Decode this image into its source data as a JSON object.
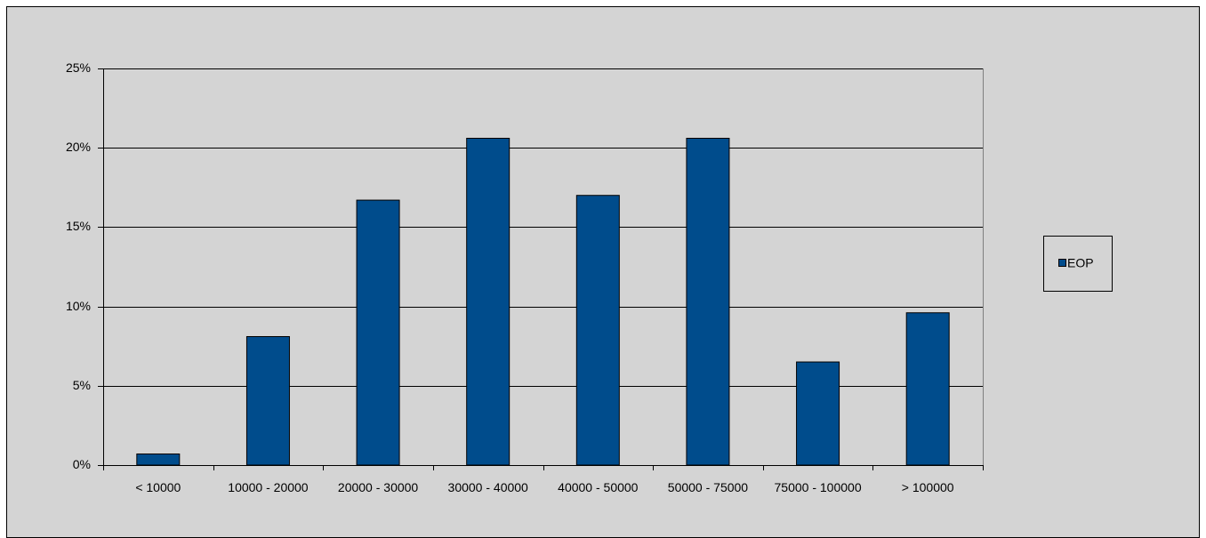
{
  "chart_data": {
    "type": "bar",
    "categories": [
      "< 10000",
      "10000 - 20000",
      "20000 - 30000",
      "30000 - 40000",
      "40000 - 50000",
      "50000 - 75000",
      "75000 - 100000",
      "> 100000"
    ],
    "series": [
      {
        "name": "EOP",
        "color": "#004c8c",
        "values": [
          0.7,
          8.1,
          16.7,
          20.6,
          17.0,
          20.6,
          6.5,
          9.6
        ]
      }
    ],
    "ylim": [
      0,
      25
    ],
    "yticks": [
      {
        "value": 0,
        "label": "0%"
      },
      {
        "value": 5,
        "label": "5%"
      },
      {
        "value": 10,
        "label": "10%"
      },
      {
        "value": 15,
        "label": "15%"
      },
      {
        "value": 20,
        "label": "20%"
      },
      {
        "value": 25,
        "label": "25%"
      }
    ],
    "grid": true,
    "legend": "right"
  }
}
